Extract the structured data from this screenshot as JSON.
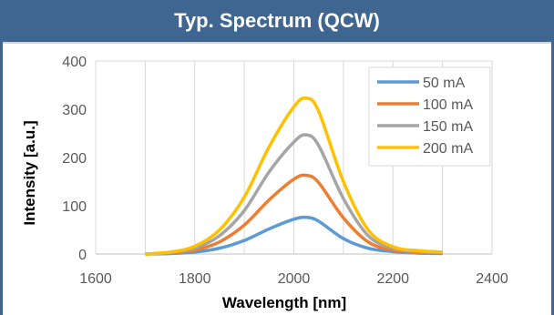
{
  "header": {
    "title": "Typ. Spectrum (QCW)"
  },
  "colors": {
    "header_bg": "#3f6690",
    "s50": "#5b9bd5",
    "s100": "#ed7d31",
    "s150": "#a5a5a5",
    "s200": "#ffc000"
  },
  "chart_data": {
    "type": "line",
    "title": "",
    "xlabel": "Wavelength [nm]",
    "ylabel": "Intensity [a.u.]",
    "xlim": [
      1600,
      2400
    ],
    "ylim": [
      0,
      400
    ],
    "xticks": [
      "1600",
      "1800",
      "2000",
      "2200",
      "2400"
    ],
    "yticks": [
      "0",
      "100",
      "200",
      "300",
      "400"
    ],
    "grid": "vertical",
    "legend_position": "top-right",
    "x": [
      1700,
      1750,
      1800,
      1850,
      1900,
      1950,
      2000,
      2025,
      2050,
      2100,
      2150,
      2200,
      2250,
      2300
    ],
    "series": [
      {
        "name": "50 mA",
        "color": "#5b9bd5",
        "values": [
          0,
          1,
          4,
          12,
          28,
          52,
          72,
          76,
          68,
          32,
          12,
          5,
          2,
          1
        ]
      },
      {
        "name": "100 mA",
        "color": "#ed7d31",
        "values": [
          0,
          2,
          8,
          25,
          60,
          112,
          155,
          163,
          148,
          75,
          25,
          8,
          3,
          2
        ]
      },
      {
        "name": "150 mA",
        "color": "#a5a5a5",
        "values": [
          0,
          3,
          12,
          38,
          90,
          170,
          232,
          247,
          225,
          115,
          38,
          12,
          5,
          3
        ]
      },
      {
        "name": "200 mA",
        "color": "#ffc000",
        "values": [
          0,
          4,
          16,
          50,
          118,
          222,
          305,
          323,
          296,
          150,
          50,
          15,
          7,
          4
        ]
      }
    ]
  }
}
